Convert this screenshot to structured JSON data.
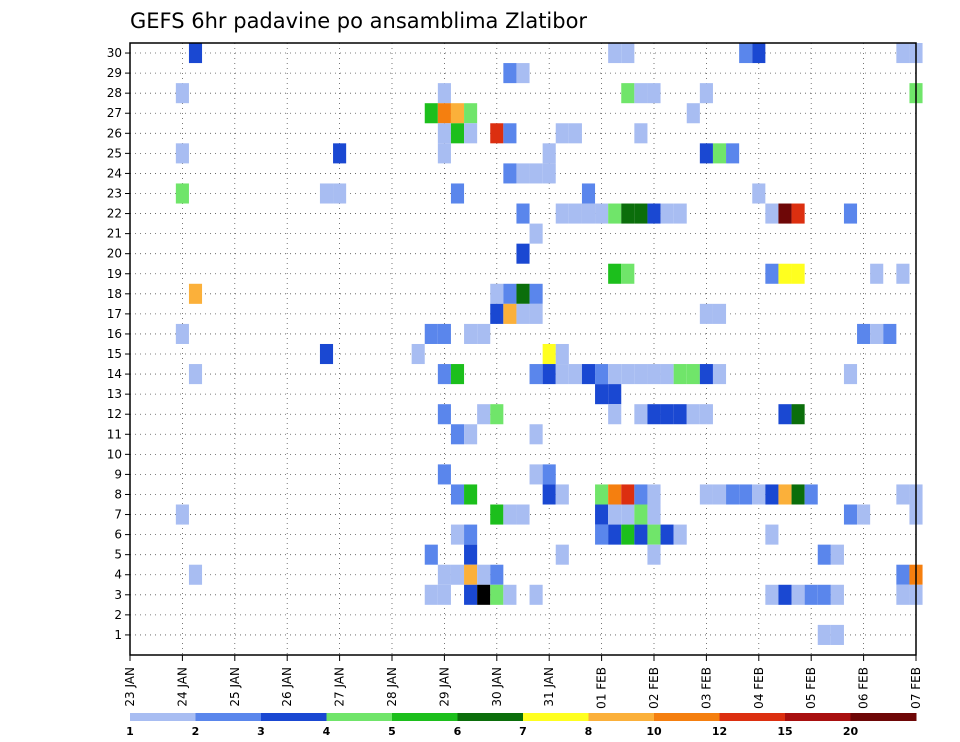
{
  "chart_data": {
    "type": "heatmap",
    "title": "GEFS 6hr padavine po ansamblima Zlatibor",
    "xlabel": "",
    "ylabel": "",
    "y_ticks": [
      1,
      2,
      3,
      4,
      5,
      6,
      7,
      8,
      9,
      10,
      11,
      12,
      13,
      14,
      15,
      16,
      17,
      18,
      19,
      20,
      21,
      22,
      23,
      24,
      25,
      26,
      27,
      28,
      29,
      30
    ],
    "ylim": [
      0,
      30.5
    ],
    "x_ticks": [
      "23 JAN",
      "24 JAN",
      "25 JAN",
      "26 JAN",
      "27 JAN",
      "28 JAN",
      "29 JAN",
      "30 JAN",
      "31 JAN",
      "01 FEB",
      "02 FEB",
      "03 FEB",
      "04 FEB",
      "05 FEB",
      "06 FEB",
      "07 FEB"
    ],
    "x_range_days": [
      0,
      15
    ],
    "x_step_hours": 6,
    "grid": "dotted",
    "colorbar": {
      "labels": [
        "1",
        "2",
        "3",
        "4",
        "5",
        "6",
        "7",
        "8",
        "10",
        "12",
        "15",
        "20"
      ],
      "colors": [
        "#a8bdf2",
        "#5a86ec",
        "#1a48d2",
        "#70e56a",
        "#1cbf1c",
        "#0b6e0b",
        "#ffff1f",
        "#fbb03a",
        "#f57f0f",
        "#dc2f10",
        "#a80f0f",
        "#6e0707"
      ]
    },
    "cells": [
      [
        1.25,
        30,
        3
      ],
      [
        9.25,
        30,
        1
      ],
      [
        9.5,
        30,
        1
      ],
      [
        11.75,
        30,
        2
      ],
      [
        12,
        30,
        3
      ],
      [
        14.75,
        30,
        1
      ],
      [
        15,
        30,
        1
      ],
      [
        7.25,
        29,
        2
      ],
      [
        7.5,
        29,
        1
      ],
      [
        1.0,
        28,
        1
      ],
      [
        6.0,
        28,
        1
      ],
      [
        9.5,
        28,
        4
      ],
      [
        9.75,
        28,
        1
      ],
      [
        10.0,
        28,
        1
      ],
      [
        11.0,
        28,
        1
      ],
      [
        15.0,
        28,
        4
      ],
      [
        5.75,
        27,
        5
      ],
      [
        6.0,
        27,
        9
      ],
      [
        6.25,
        27,
        8
      ],
      [
        6.5,
        27,
        4
      ],
      [
        10.75,
        27,
        1
      ],
      [
        6.0,
        26,
        1
      ],
      [
        6.25,
        26,
        5
      ],
      [
        6.5,
        26,
        1
      ],
      [
        7.0,
        26,
        10
      ],
      [
        7.25,
        26,
        2
      ],
      [
        8.25,
        26,
        1
      ],
      [
        8.5,
        26,
        1
      ],
      [
        9.75,
        26,
        1
      ],
      [
        1.0,
        25,
        1
      ],
      [
        4.0,
        25,
        3
      ],
      [
        6.0,
        25,
        1
      ],
      [
        8.0,
        25,
        1
      ],
      [
        11.0,
        25,
        3
      ],
      [
        11.25,
        25,
        4
      ],
      [
        11.5,
        25,
        2
      ],
      [
        7.25,
        24,
        2
      ],
      [
        7.5,
        24,
        1
      ],
      [
        7.75,
        24,
        1
      ],
      [
        8.0,
        24,
        1
      ],
      [
        1.0,
        23,
        4
      ],
      [
        3.75,
        23,
        1
      ],
      [
        4.0,
        23,
        1
      ],
      [
        6.25,
        23,
        2
      ],
      [
        8.75,
        23,
        2
      ],
      [
        12.0,
        23,
        1
      ],
      [
        7.5,
        22,
        2
      ],
      [
        8.25,
        22,
        1
      ],
      [
        8.5,
        22,
        1
      ],
      [
        8.75,
        22,
        1
      ],
      [
        9.0,
        22,
        1
      ],
      [
        9.25,
        22,
        4
      ],
      [
        9.5,
        22,
        6
      ],
      [
        9.75,
        22,
        6
      ],
      [
        10.0,
        22,
        3
      ],
      [
        10.25,
        22,
        1
      ],
      [
        10.5,
        22,
        1
      ],
      [
        12.25,
        22,
        1
      ],
      [
        12.5,
        22,
        12
      ],
      [
        12.75,
        22,
        10
      ],
      [
        13.75,
        22,
        2
      ],
      [
        7.75,
        21,
        1
      ],
      [
        7.5,
        20,
        3
      ],
      [
        9.25,
        19,
        5
      ],
      [
        9.5,
        19,
        4
      ],
      [
        12.25,
        19,
        2
      ],
      [
        12.5,
        19,
        7
      ],
      [
        12.75,
        19,
        7
      ],
      [
        14.25,
        19,
        1
      ],
      [
        14.75,
        19,
        1
      ],
      [
        1.25,
        18,
        8
      ],
      [
        7.0,
        18,
        1
      ],
      [
        7.25,
        18,
        2
      ],
      [
        7.5,
        18,
        6
      ],
      [
        7.75,
        18,
        2
      ],
      [
        7.0,
        17,
        3
      ],
      [
        7.25,
        17,
        8
      ],
      [
        7.5,
        17,
        1
      ],
      [
        7.75,
        17,
        1
      ],
      [
        11.0,
        17,
        1
      ],
      [
        11.25,
        17,
        1
      ],
      [
        1.0,
        16,
        1
      ],
      [
        5.75,
        16,
        2
      ],
      [
        6.0,
        16,
        2
      ],
      [
        6.5,
        16,
        1
      ],
      [
        6.75,
        16,
        1
      ],
      [
        14.0,
        16,
        2
      ],
      [
        14.25,
        16,
        1
      ],
      [
        14.5,
        16,
        2
      ],
      [
        3.75,
        15,
        3
      ],
      [
        5.5,
        15,
        1
      ],
      [
        8.0,
        15,
        7
      ],
      [
        8.25,
        15,
        1
      ],
      [
        1.25,
        14,
        1
      ],
      [
        6.0,
        14,
        2
      ],
      [
        6.25,
        14,
        5
      ],
      [
        7.75,
        14,
        2
      ],
      [
        8.0,
        14,
        3
      ],
      [
        8.25,
        14,
        1
      ],
      [
        8.5,
        14,
        1
      ],
      [
        8.75,
        14,
        3
      ],
      [
        9.0,
        14,
        2
      ],
      [
        9.25,
        14,
        1
      ],
      [
        9.5,
        14,
        1
      ],
      [
        9.75,
        14,
        1
      ],
      [
        10.0,
        14,
        1
      ],
      [
        10.25,
        14,
        1
      ],
      [
        10.5,
        14,
        4
      ],
      [
        10.75,
        14,
        4
      ],
      [
        11.0,
        14,
        3
      ],
      [
        11.25,
        14,
        1
      ],
      [
        13.75,
        14,
        1
      ],
      [
        9.0,
        13,
        3
      ],
      [
        9.25,
        13,
        3
      ],
      [
        6.0,
        12,
        2
      ],
      [
        6.75,
        12,
        1
      ],
      [
        7.0,
        12,
        4
      ],
      [
        9.25,
        12,
        1
      ],
      [
        9.75,
        12,
        1
      ],
      [
        10.0,
        12,
        3
      ],
      [
        10.25,
        12,
        3
      ],
      [
        10.5,
        12,
        3
      ],
      [
        10.75,
        12,
        1
      ],
      [
        11.0,
        12,
        1
      ],
      [
        12.5,
        12,
        3
      ],
      [
        12.75,
        12,
        6
      ],
      [
        6.25,
        11,
        2
      ],
      [
        6.5,
        11,
        1
      ],
      [
        7.75,
        11,
        1
      ],
      [
        6.0,
        9,
        2
      ],
      [
        7.75,
        9,
        1
      ],
      [
        8.0,
        9,
        2
      ],
      [
        6.25,
        8,
        2
      ],
      [
        6.5,
        8,
        5
      ],
      [
        8.0,
        8,
        3
      ],
      [
        8.25,
        8,
        1
      ],
      [
        9.0,
        8,
        4
      ],
      [
        9.25,
        8,
        9
      ],
      [
        9.5,
        8,
        10
      ],
      [
        9.75,
        8,
        2
      ],
      [
        10.0,
        8,
        1
      ],
      [
        11.0,
        8,
        1
      ],
      [
        11.25,
        8,
        1
      ],
      [
        11.5,
        8,
        2
      ],
      [
        11.75,
        8,
        2
      ],
      [
        12.0,
        8,
        1
      ],
      [
        12.25,
        8,
        3
      ],
      [
        12.5,
        8,
        8
      ],
      [
        12.75,
        8,
        6
      ],
      [
        13.0,
        8,
        2
      ],
      [
        14.75,
        8,
        1
      ],
      [
        15.0,
        8,
        1
      ],
      [
        1.0,
        7,
        1
      ],
      [
        7.0,
        7,
        5
      ],
      [
        7.25,
        7,
        1
      ],
      [
        7.5,
        7,
        1
      ],
      [
        9.0,
        7,
        3
      ],
      [
        9.25,
        7,
        1
      ],
      [
        9.5,
        7,
        1
      ],
      [
        9.75,
        7,
        4
      ],
      [
        10.0,
        7,
        1
      ],
      [
        13.75,
        7,
        2
      ],
      [
        14.0,
        7,
        1
      ],
      [
        15.0,
        7,
        1
      ],
      [
        6.25,
        6,
        1
      ],
      [
        6.5,
        6,
        2
      ],
      [
        9.0,
        6,
        2
      ],
      [
        9.25,
        6,
        3
      ],
      [
        9.5,
        6,
        5
      ],
      [
        9.75,
        6,
        3
      ],
      [
        10.0,
        6,
        4
      ],
      [
        10.25,
        6,
        3
      ],
      [
        10.5,
        6,
        1
      ],
      [
        12.25,
        6,
        1
      ],
      [
        5.75,
        5,
        2
      ],
      [
        6.5,
        5,
        3
      ],
      [
        8.25,
        5,
        1
      ],
      [
        10.0,
        5,
        1
      ],
      [
        13.25,
        5,
        2
      ],
      [
        13.5,
        5,
        1
      ],
      [
        1.25,
        4,
        1
      ],
      [
        6.0,
        4,
        1
      ],
      [
        6.25,
        4,
        1
      ],
      [
        6.5,
        4,
        8
      ],
      [
        6.75,
        4,
        1
      ],
      [
        7.0,
        4,
        2
      ],
      [
        14.75,
        4,
        2
      ],
      [
        15.0,
        4,
        9
      ],
      [
        5.75,
        3,
        1
      ],
      [
        6.0,
        3,
        1
      ],
      [
        6.5,
        3,
        3
      ],
      [
        6.75,
        3,
        13
      ],
      [
        7.0,
        3,
        4
      ],
      [
        7.25,
        3,
        1
      ],
      [
        7.75,
        3,
        1
      ],
      [
        12.25,
        3,
        1
      ],
      [
        12.5,
        3,
        3
      ],
      [
        12.75,
        3,
        1
      ],
      [
        13.0,
        3,
        2
      ],
      [
        13.25,
        3,
        2
      ],
      [
        13.5,
        3,
        1
      ],
      [
        14.75,
        3,
        1
      ],
      [
        15.0,
        3,
        1
      ],
      [
        13.25,
        1,
        1
      ],
      [
        13.5,
        1,
        1
      ]
    ]
  }
}
